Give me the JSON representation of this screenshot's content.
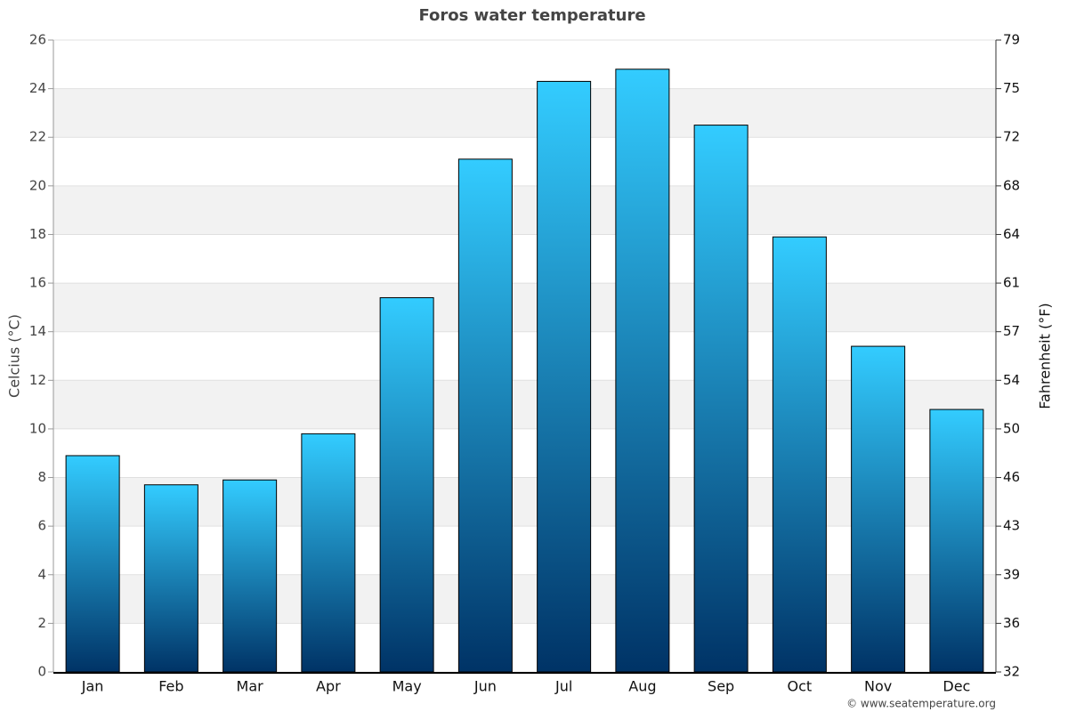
{
  "chart_data": {
    "type": "bar",
    "title": "Foros water temperature",
    "y_label": "Celcius (°C)",
    "y2_label": "Fahrenheit (°F)",
    "credit": "© www.seatemperature.org",
    "categories": [
      "Jan",
      "Feb",
      "Mar",
      "Apr",
      "May",
      "Jun",
      "Jul",
      "Aug",
      "Sep",
      "Oct",
      "Nov",
      "Dec"
    ],
    "values": [
      8.9,
      7.7,
      7.9,
      9.8,
      15.4,
      21.1,
      24.3,
      24.8,
      22.5,
      17.9,
      13.4,
      10.8
    ],
    "color": [
      "#33ccff",
      "#003366"
    ],
    "ylim": [
      0,
      26
    ],
    "yticks": [
      0,
      2,
      4,
      6,
      8,
      10,
      12,
      14,
      16,
      18,
      20,
      22,
      24,
      26
    ],
    "y2lim": [
      32,
      78.8
    ],
    "y2ticks": [
      32,
      {
        "value": 35.6,
        "label": "36"
      },
      {
        "value": 39.2,
        "label": "39"
      },
      {
        "value": 42.8,
        "label": "43"
      },
      {
        "value": 46.4,
        "label": "46"
      },
      50,
      {
        "value": 53.6,
        "label": "54"
      },
      {
        "value": 57.2,
        "label": "57"
      },
      {
        "value": 60.8,
        "label": "61"
      },
      {
        "value": 64.4,
        "label": "64"
      },
      68,
      {
        "value": 71.6,
        "label": "72"
      },
      {
        "value": 75.2,
        "label": "75"
      },
      {
        "value": 78.8,
        "label": "79"
      }
    ],
    "grid": true
  }
}
